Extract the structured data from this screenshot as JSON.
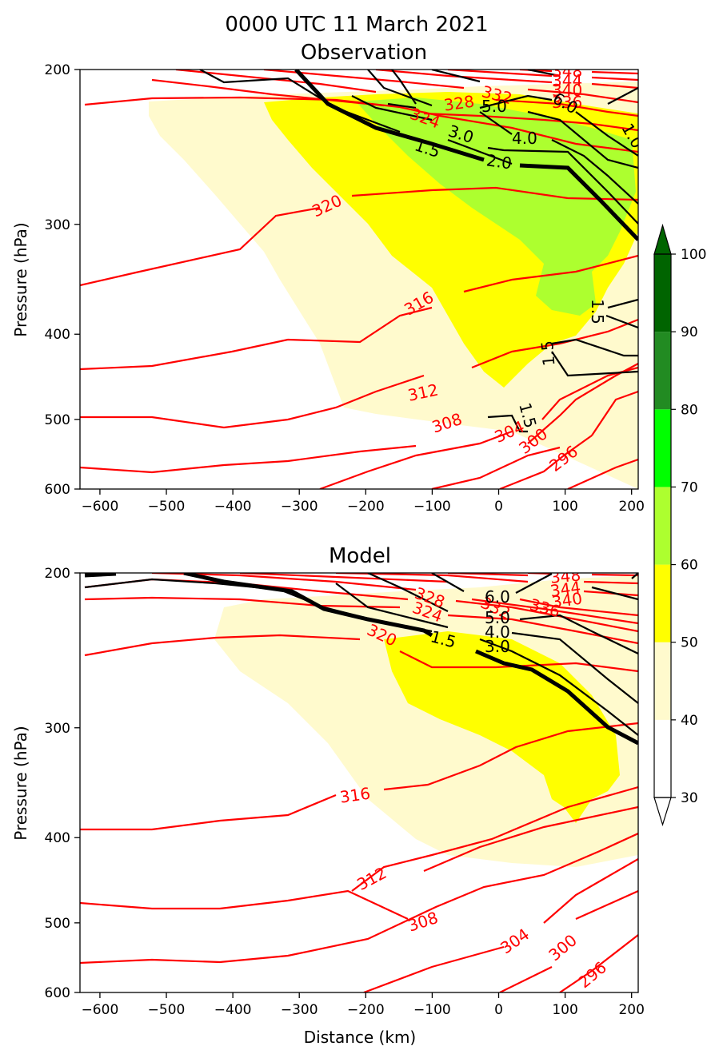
{
  "figure": {
    "title": "0000 UTC 11 March 2021"
  },
  "chart_data": [
    {
      "type": "contour",
      "title": "Observation",
      "xlabel": "",
      "ylabel": "Pressure (hPa)",
      "xlim": [
        -630,
        210
      ],
      "ylim": [
        600,
        200
      ],
      "y_scale": "log",
      "x_ticks": [
        -600,
        -500,
        -400,
        -300,
        -200,
        -100,
        0,
        100,
        200
      ],
      "y_ticks": [
        200,
        300,
        400,
        500,
        600
      ],
      "theta_labels": [
        {
          "text": "296",
          "x": 100,
          "y": 550
        },
        {
          "text": "300",
          "x": 50,
          "y": 533
        },
        {
          "text": "304",
          "x": 20,
          "y": 522
        },
        {
          "text": "308",
          "x": -75,
          "y": 505
        },
        {
          "text": "312",
          "x": -110,
          "y": 473
        },
        {
          "text": "316",
          "x": -115,
          "y": 373
        },
        {
          "text": "320",
          "x": -255,
          "y": 290
        },
        {
          "text": "324",
          "x": -105,
          "y": 233
        },
        {
          "text": "328",
          "x": -55,
          "y": 223
        },
        {
          "text": "332",
          "x": -10,
          "y": 218
        },
        {
          "text": "336",
          "x": 100,
          "y": 211
        },
        {
          "text": "340",
          "x": 105,
          "y": 206
        },
        {
          "text": "344",
          "x": 110,
          "y": 203
        },
        {
          "text": "348",
          "x": 112,
          "y": 201
        }
      ],
      "pv_labels": [
        {
          "text": "1.5",
          "x": -110,
          "y": 252
        },
        {
          "text": "2.0",
          "x": 0,
          "y": 258
        },
        {
          "text": "3.0",
          "x": -55,
          "y": 244
        },
        {
          "text": "4.0",
          "x": 45,
          "y": 244
        },
        {
          "text": "5.0",
          "x": -5,
          "y": 226
        },
        {
          "text": "6.0",
          "x": 100,
          "y": 222
        },
        {
          "text": "1.0",
          "x": 200,
          "y": 245
        },
        {
          "text": "1.5",
          "x": 150,
          "y": 390
        },
        {
          "text": "1.5",
          "x": 75,
          "y": 428
        },
        {
          "text": "1.5",
          "x": 35,
          "y": 510
        }
      ]
    },
    {
      "type": "contour",
      "title": "Model",
      "xlabel": "Distance (km)",
      "ylabel": "Pressure (hPa)",
      "xlim": [
        -630,
        210
      ],
      "ylim": [
        600,
        200
      ],
      "y_scale": "log",
      "x_ticks": [
        -600,
        -500,
        -400,
        -300,
        -200,
        -100,
        0,
        100,
        200
      ],
      "y_ticks": [
        200,
        300,
        400,
        500,
        600
      ],
      "theta_labels": [
        {
          "text": "296",
          "x": 145,
          "y": 575
        },
        {
          "text": "300",
          "x": 100,
          "y": 530
        },
        {
          "text": "304",
          "x": 28,
          "y": 525
        },
        {
          "text": "308",
          "x": -115,
          "y": 490
        },
        {
          "text": "312",
          "x": -190,
          "y": 448
        },
        {
          "text": "316",
          "x": -215,
          "y": 365
        },
        {
          "text": "320",
          "x": -175,
          "y": 246
        },
        {
          "text": "324",
          "x": -105,
          "y": 220
        },
        {
          "text": "328",
          "x": -100,
          "y": 214
        },
        {
          "text": "332",
          "x": 0,
          "y": 215
        },
        {
          "text": "336",
          "x": 75,
          "y": 218
        },
        {
          "text": "340",
          "x": 120,
          "y": 211
        },
        {
          "text": "344",
          "x": 110,
          "y": 206
        },
        {
          "text": "348",
          "x": 110,
          "y": 202
        }
      ],
      "pv_labels": [
        {
          "text": "1.5",
          "x": -75,
          "y": 247
        },
        {
          "text": "3.0",
          "x": 0,
          "y": 247
        },
        {
          "text": "4.0",
          "x": 0,
          "y": 236
        },
        {
          "text": "5.0",
          "x": 0,
          "y": 228
        },
        {
          "text": "6.0",
          "x": 0,
          "y": 212
        }
      ]
    }
  ],
  "colorbar": {
    "levels": [
      30,
      40,
      50,
      60,
      70,
      80,
      90,
      100
    ],
    "colors": [
      "#ffffff",
      "#fffacd",
      "#ffff00",
      "#adff2f",
      "#00ff00",
      "#228b22",
      "#006400"
    ],
    "extend": "both"
  },
  "colors": {
    "theta": "#ff0000",
    "pv": "#000000",
    "fill_40": "#fffacd",
    "fill_50": "#ffff00",
    "fill_60": "#adff2f"
  }
}
